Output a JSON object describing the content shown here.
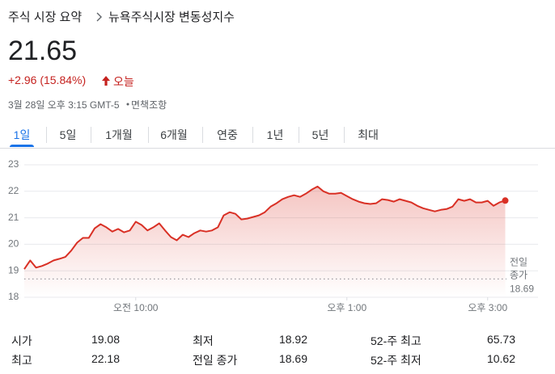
{
  "header": {
    "breadcrumb": [
      "주식 시장 요약",
      "뉴욕주식시장 변동성지수"
    ],
    "price": 21.65,
    "change": "+2.96 (15.84%)",
    "period": "오늘",
    "timestamp": "3월 28일 오후 3:15 GMT-5",
    "disclaimer": "면책조항"
  },
  "tabs": [
    "1일",
    "5일",
    "1개월",
    "6개월",
    "연중",
    "1년",
    "5년",
    "최대"
  ],
  "selected_tab": 0,
  "chart_data": {
    "type": "line",
    "x": [
      505,
      510,
      515,
      520,
      525,
      530,
      535,
      540,
      545,
      550,
      555,
      560,
      565,
      570,
      575,
      580,
      585,
      590,
      595,
      600,
      605,
      610,
      615,
      620,
      625,
      630,
      635,
      640,
      645,
      650,
      655,
      660,
      665,
      670,
      675,
      680,
      685,
      690,
      695,
      700,
      705,
      710,
      715,
      720,
      725,
      730,
      735,
      740,
      745,
      750,
      755,
      760,
      765,
      770,
      775,
      780,
      785,
      790,
      795,
      800,
      805,
      810,
      815,
      820,
      825,
      830,
      835,
      840,
      845,
      850,
      855,
      860,
      865,
      870,
      875,
      880,
      885,
      890,
      895,
      900,
      905,
      910,
      915
    ],
    "series": [
      {
        "color": "#d93025",
        "values": [
          19.06,
          19.39,
          19.12,
          19.18,
          19.27,
          19.39,
          19.45,
          19.52,
          19.76,
          20.06,
          20.24,
          20.24,
          20.6,
          20.76,
          20.64,
          20.48,
          20.58,
          20.45,
          20.52,
          20.85,
          20.73,
          20.52,
          20.64,
          20.79,
          20.52,
          20.27,
          20.15,
          20.36,
          20.27,
          20.42,
          20.52,
          20.48,
          20.52,
          20.64,
          21.09,
          21.21,
          21.15,
          20.94,
          20.97,
          21.03,
          21.09,
          21.21,
          21.42,
          21.55,
          21.7,
          21.79,
          21.85,
          21.79,
          21.91,
          22.06,
          22.18,
          22.0,
          21.91,
          21.91,
          21.94,
          21.82,
          21.7,
          21.61,
          21.55,
          21.52,
          21.55,
          21.7,
          21.67,
          21.61,
          21.7,
          21.64,
          21.58,
          21.45,
          21.36,
          21.3,
          21.24,
          21.3,
          21.33,
          21.42,
          21.7,
          21.64,
          21.7,
          21.58,
          21.58,
          21.64,
          21.45,
          21.58,
          21.65
        ]
      }
    ],
    "xlim": [
      505,
      925
    ],
    "xticks": [
      {
        "value": 600,
        "label": "오전 10:00"
      },
      {
        "value": 780,
        "label": "오후 1:00"
      },
      {
        "value": 900,
        "label": "오후 3:00"
      }
    ],
    "ylim": [
      18,
      23
    ],
    "yticks": [
      18,
      19,
      20,
      21,
      22,
      23
    ],
    "grid": true,
    "reference": {
      "label": "전일 종가",
      "value": 18.69
    }
  },
  "stats": [
    [
      {
        "label": "시가",
        "value": 19.08
      },
      {
        "label": "최저",
        "value": 18.92
      },
      {
        "label": "52-주 최고",
        "value": 65.73
      }
    ],
    [
      {
        "label": "최고",
        "value": 22.18
      },
      {
        "label": "전일 종가",
        "value": 18.69
      },
      {
        "label": "52-주 최저",
        "value": 10.62
      }
    ]
  ]
}
